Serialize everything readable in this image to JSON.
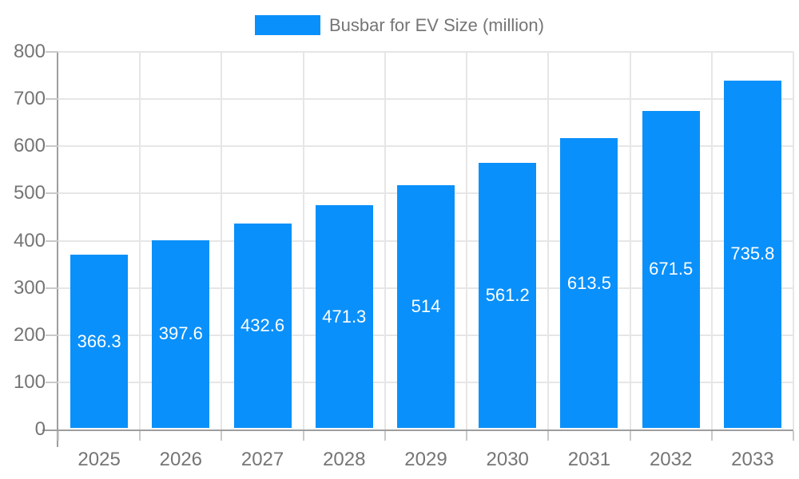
{
  "legend": {
    "label": "Busbar for EV Size (million)"
  },
  "colors": {
    "bar": "#0a90fa",
    "grid": "#e6e6e6",
    "axis_line": "#9e9e9e",
    "tick": "#c9c9c9",
    "tick_text": "#757575",
    "value_text": "#ffffff",
    "background": "#ffffff"
  },
  "chart_data": {
    "type": "bar",
    "title": "",
    "legend": "Busbar for EV Size (million)",
    "legend_position": "top-center",
    "categories": [
      "2025",
      "2026",
      "2027",
      "2028",
      "2029",
      "2030",
      "2031",
      "2032",
      "2033"
    ],
    "values": [
      366.3,
      397.6,
      432.6,
      471.3,
      514,
      561.2,
      613.5,
      671.5,
      735.8
    ],
    "value_labels": [
      "366.3",
      "397.6",
      "432.6",
      "471.3",
      "514",
      "561.2",
      "613.5",
      "671.5",
      "735.8"
    ],
    "value_label_position": "inside-center",
    "xlabel": "",
    "ylabel": "",
    "ylim": [
      0,
      800
    ],
    "yticks": [
      0,
      100,
      200,
      300,
      400,
      500,
      600,
      700,
      800
    ],
    "grid": true
  }
}
